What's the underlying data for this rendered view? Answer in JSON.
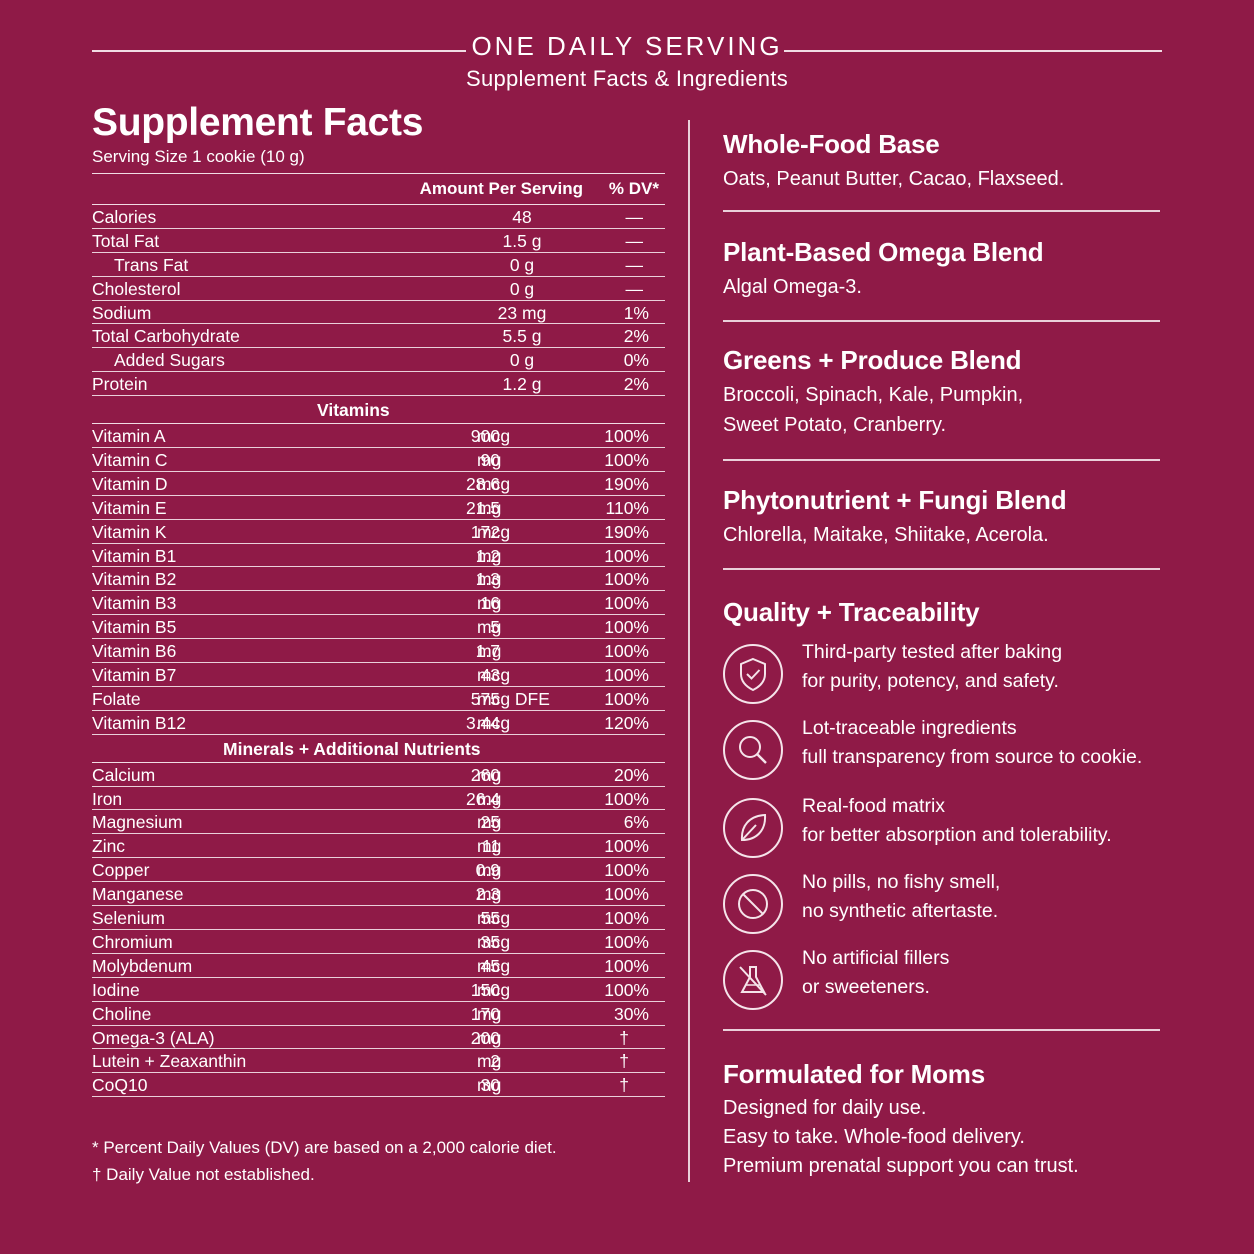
{
  "header": {
    "title": "ONE DAILY SERVING",
    "subtitle": "Supplement Facts & Ingredients"
  },
  "facts": {
    "title": "Supplement Facts",
    "serving": "Serving Size 1 cookie (10 g)",
    "col_amount": "Amount Per Serving",
    "col_dv": "% DV*",
    "macros": [
      {
        "name": "Calories",
        "amount": "48",
        "dv": "—"
      },
      {
        "name": "Total Fat",
        "amount": "1.5 g",
        "dv": "—"
      },
      {
        "name": "Trans Fat",
        "amount": "0 g",
        "dv": "—",
        "indent": true
      },
      {
        "name": "Cholesterol",
        "amount": "0 g",
        "dv": "—"
      },
      {
        "name": "Sodium",
        "amount": "23 mg",
        "dv": "1%"
      },
      {
        "name": "Total Carbohydrate",
        "amount": "5.5 g",
        "dv": "2%"
      },
      {
        "name": "Added Sugars",
        "amount": "0 g",
        "dv": "0%",
        "indent": true
      },
      {
        "name": "Protein",
        "amount": "1.2 g",
        "dv": "2%"
      }
    ],
    "vitamins_label": "Vitamins",
    "vitamins": [
      {
        "name": "Vitamin A",
        "num": "900",
        "unit": "mcg",
        "dv": "100%"
      },
      {
        "name": "Vitamin C",
        "num": "90",
        "unit": "mg",
        "dv": "100%"
      },
      {
        "name": "Vitamin D",
        "num": "28.6",
        "unit": "mcg",
        "dv": "190%"
      },
      {
        "name": "Vitamin E",
        "num": "21.5",
        "unit": "mg",
        "dv": "110%"
      },
      {
        "name": "Vitamin K",
        "num": "172",
        "unit": "mcg",
        "dv": "190%"
      },
      {
        "name": "Vitamin B1",
        "num": "1.2",
        "unit": "mg",
        "dv": "100%"
      },
      {
        "name": "Vitamin B2",
        "num": "1.3",
        "unit": "mg",
        "dv": "100%"
      },
      {
        "name": "Vitamin B3",
        "num": "16",
        "unit": "mg",
        "dv": "100%"
      },
      {
        "name": "Vitamin B5",
        "num": "5",
        "unit": "mg",
        "dv": "100%"
      },
      {
        "name": "Vitamin B6",
        "num": "1.7",
        "unit": "mg",
        "dv": "100%"
      },
      {
        "name": "Vitamin B7",
        "num": "43",
        "unit": "mcg",
        "dv": "100%"
      },
      {
        "name": "Folate",
        "num": "575",
        "unit": "mcg DFE",
        "dv": "100%"
      },
      {
        "name": "Vitamin B12",
        "num": "3.44",
        "unit": "mcg",
        "dv": "120%"
      }
    ],
    "minerals_label": "Minerals + Additional Nutrients",
    "minerals": [
      {
        "name": "Calcium",
        "num": "260",
        "unit": "mg",
        "dv": "20%"
      },
      {
        "name": "Iron",
        "num": "26.4",
        "unit": "mg",
        "dv": "100%"
      },
      {
        "name": "Magnesium",
        "num": "25",
        "unit": "mg",
        "dv": "6%"
      },
      {
        "name": "Zinc",
        "num": "11",
        "unit": "mg",
        "dv": "100%"
      },
      {
        "name": "Copper",
        "num": "0.9",
        "unit": "mg",
        "dv": "100%"
      },
      {
        "name": "Manganese",
        "num": "2.3",
        "unit": "mg",
        "dv": "100%"
      },
      {
        "name": "Selenium",
        "num": "55",
        "unit": "mcg",
        "dv": "100%"
      },
      {
        "name": "Chromium",
        "num": "35",
        "unit": "mcg",
        "dv": "100%"
      },
      {
        "name": "Molybdenum",
        "num": "45",
        "unit": "mcg",
        "dv": "100%"
      },
      {
        "name": "Iodine",
        "num": "150",
        "unit": "mcg",
        "dv": "100%"
      },
      {
        "name": "Choline",
        "num": "170",
        "unit": "mg",
        "dv": "30%"
      },
      {
        "name": "Omega-3 (ALA)",
        "num": "200",
        "unit": "mg",
        "dv": "†"
      },
      {
        "name": "Lutein + Zeaxanthin",
        "num": "2",
        "unit": "mg",
        "dv": "†"
      },
      {
        "name": "CoQ10",
        "num": "30",
        "unit": "mg",
        "dv": "†"
      }
    ],
    "footnote_1": "* Percent Daily Values (DV) are based on a 2,000 calorie diet.",
    "footnote_2": "† Daily Value not established."
  },
  "ingredients": {
    "whole_food": {
      "title": "Whole-Food Base",
      "text": "Oats, Peanut Butter, Cacao, Flaxseed."
    },
    "omega": {
      "title": "Plant-Based Omega Blend",
      "text": "Algal Omega-3."
    },
    "greens": {
      "title": "Greens + Produce Blend",
      "line1": "Broccoli, Spinach, Kale, Pumpkin,",
      "line2": "Sweet Potato, Cranberry."
    },
    "phyto": {
      "title": "Phytonutrient + Fungi Blend",
      "text": "Chlorella, Maitake, Shiitake, Acerola."
    }
  },
  "quality": {
    "title": "Quality + Traceability",
    "items": [
      {
        "icon": "shield-check-icon",
        "line1": "Third-party tested after baking",
        "line2": "for purity, potency, and safety."
      },
      {
        "icon": "magnifier-icon",
        "line1": "Lot-traceable ingredients",
        "line2": "full transparency from source to cookie."
      },
      {
        "icon": "leaf-icon",
        "line1": "Real-food matrix",
        "line2": "for better absorption and tolerability."
      },
      {
        "icon": "prohibited-icon",
        "line1": "No pills, no fishy smell,",
        "line2": "no synthetic aftertaste."
      },
      {
        "icon": "crossed-flask-icon",
        "line1": "No artificial fillers",
        "line2": "or sweeteners."
      }
    ]
  },
  "moms": {
    "title": "Formulated for Moms",
    "line1": "Designed for daily use.",
    "line2": "Easy to take. Whole-food delivery.",
    "line3": "Premium prenatal support you can trust."
  }
}
